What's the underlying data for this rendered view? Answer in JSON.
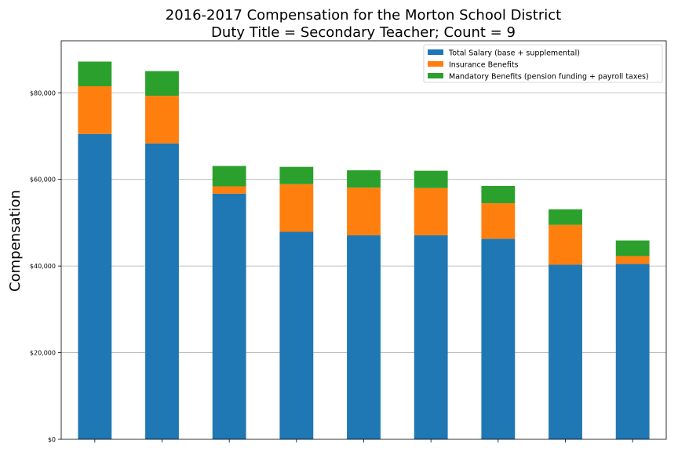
{
  "chart_data": {
    "type": "bar",
    "stacked": true,
    "title_line1": "2016-2017 Compensation for the Morton School District",
    "title_line2": "Duty Title = Secondary Teacher; Count = 9",
    "xlabel": "",
    "ylabel": "Compensation",
    "ylim": [
      0,
      92000
    ],
    "yticks": [
      0,
      20000,
      40000,
      60000,
      80000
    ],
    "ytick_labels": [
      "$0",
      "$20,000",
      "$40,000",
      "$60,000",
      "$80,000"
    ],
    "grid": "horizontal",
    "legend_position": "top-right",
    "categories": [
      "",
      "",
      "",
      "",
      "",
      "",
      "",
      "",
      ""
    ],
    "series": [
      {
        "name": "Total Salary (base + supplemental)",
        "color": "#1f77b4",
        "values": [
          70500,
          68300,
          56700,
          47900,
          47100,
          47100,
          46300,
          40300,
          40500
        ]
      },
      {
        "name": "Insurance Benefits",
        "color": "#ff7f0e",
        "values": [
          11000,
          11000,
          1700,
          11000,
          11000,
          10900,
          8200,
          9200,
          1800
        ]
      },
      {
        "name": "Mandatory Benefits (pension funding + payroll taxes)",
        "color": "#2ca02c",
        "values": [
          5700,
          5700,
          4700,
          4000,
          4000,
          4000,
          4000,
          3600,
          3600
        ]
      }
    ]
  }
}
